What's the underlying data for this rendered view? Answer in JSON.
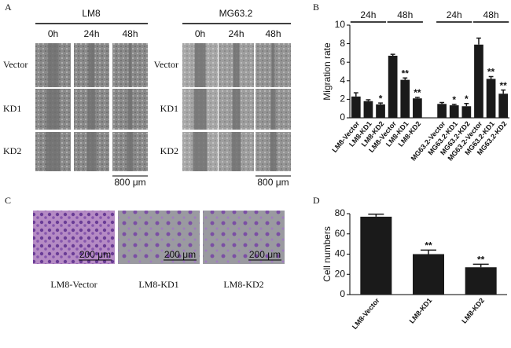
{
  "panels": {
    "a": {
      "label": "A",
      "groups": [
        "LM8",
        "MG63.2"
      ],
      "times": [
        "0h",
        "24h",
        "48h"
      ],
      "rows": [
        "Vector",
        "KD1",
        "KD2"
      ],
      "scale": [
        "800 μm",
        "800 μm"
      ]
    },
    "c": {
      "label": "C",
      "captions": [
        "LM8-Vector",
        "LM8-KD1",
        "LM8-KD2"
      ],
      "scale": [
        "200 μm",
        "200 μm",
        "200 μm"
      ]
    }
  },
  "chart_data": [
    {
      "type": "bar",
      "label": "B",
      "ylabel": "Migration rate",
      "categories": [
        "LM8-Vector",
        "LM8-KD1",
        "LM8-KD2",
        "LM8-Vector",
        "LM8-KD1",
        "LM8-KD2",
        null,
        "MG63.2-Vector",
        "MG63.2-KD1",
        "MG63.2-KD2",
        "MG63.2-Vector",
        "MG63.2-KD1",
        "MG63.2-KD2"
      ],
      "values": [
        2.3,
        1.8,
        1.45,
        6.7,
        4.1,
        2.1,
        null,
        1.5,
        1.35,
        1.25,
        7.9,
        4.2,
        2.6
      ],
      "errors": [
        0.4,
        0.15,
        0.15,
        0.15,
        0.2,
        0.1,
        null,
        0.15,
        0.1,
        0.3,
        0.7,
        0.25,
        0.4
      ],
      "significance": [
        null,
        null,
        "*",
        null,
        "**",
        "**",
        null,
        null,
        "*",
        "*",
        null,
        "**",
        "**"
      ],
      "groups": [
        "24h",
        "48h",
        "24h",
        "48h"
      ],
      "color": "#1a1a1a",
      "ylim": [
        0,
        10
      ],
      "yticks": [
        0,
        2,
        4,
        6,
        8,
        10
      ]
    },
    {
      "type": "bar",
      "label": "D",
      "ylabel": "Cell numbers",
      "categories": [
        "LM8-Vector",
        "LM8-KD1",
        "LM8-KD2"
      ],
      "values": [
        77,
        40,
        27
      ],
      "errors": [
        2.5,
        4,
        3
      ],
      "significance": [
        null,
        "**",
        "**"
      ],
      "color": "#1a1a1a",
      "ylim": [
        0,
        80
      ],
      "yticks": [
        0,
        20,
        40,
        60,
        80
      ]
    }
  ]
}
